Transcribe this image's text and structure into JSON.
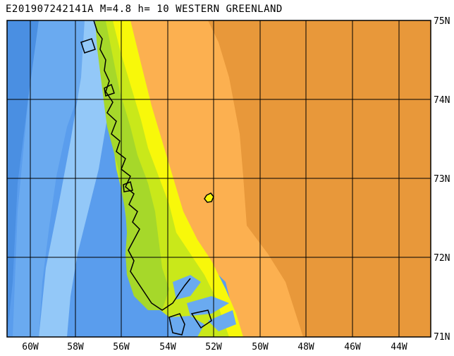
{
  "title": "E201907242141A M=4.8 h= 10 WESTERN GREENLAND",
  "lon_labels": [
    "60W",
    "58W",
    "56W",
    "54W",
    "52W",
    "50W",
    "48W",
    "46W",
    "44W"
  ],
  "lat_labels": [
    "75N",
    "74N",
    "73N",
    "72N",
    "71N"
  ],
  "colors": {
    "deep_ocean": "#4a8fe2",
    "ocean": "#6aaaf0",
    "shelf": "#93c8f8",
    "lowland": "#a6d82a",
    "green_mid": "#c9e81a",
    "yellow": "#f8f80a",
    "ice_light": "#fcb050",
    "ice_dark": "#e8983a",
    "coast": "#000000"
  }
}
